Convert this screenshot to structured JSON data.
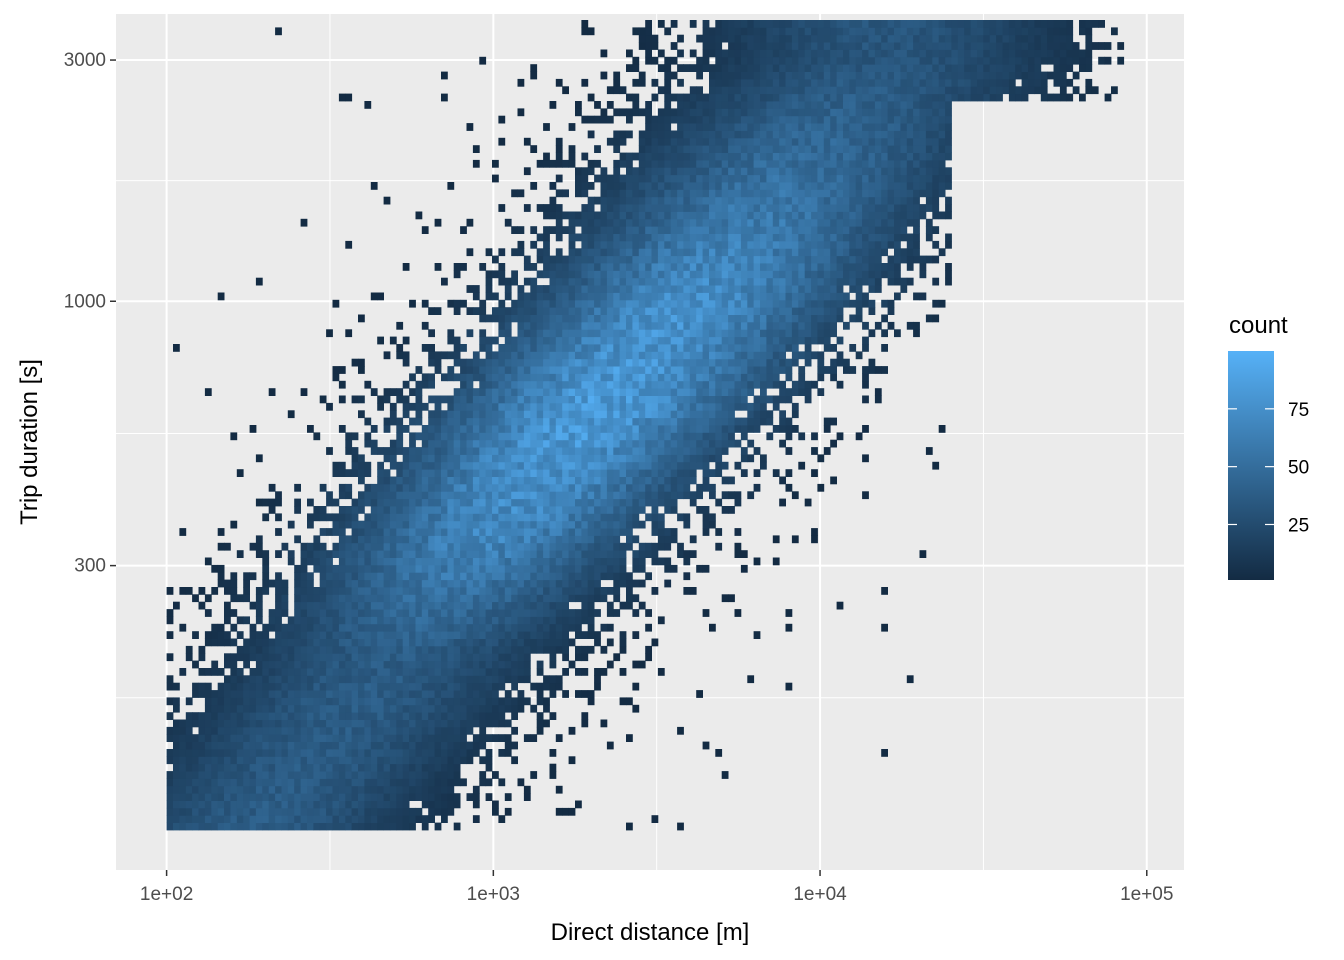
{
  "chart_data": {
    "type": "heatmap",
    "title": "",
    "xlabel": "Direct distance [m]",
    "ylabel": "Trip duration [s]",
    "x_scale": "log10",
    "y_scale": "log10",
    "xlim": [
      70,
      130000
    ],
    "ylim": [
      75,
      3700
    ],
    "x_ticks": [
      {
        "value": 100,
        "label": "1e+02"
      },
      {
        "value": 1000,
        "label": "1e+03"
      },
      {
        "value": 10000,
        "label": "1e+04"
      },
      {
        "value": 100000,
        "label": "1e+05"
      }
    ],
    "y_ticks": [
      {
        "value": 300,
        "label": "300"
      },
      {
        "value": 1000,
        "label": "1000"
      },
      {
        "value": 3000,
        "label": "3000"
      }
    ],
    "grid": true,
    "background_color": "#ebebeb",
    "grid_color": "#ffffff",
    "color_low": "#132b43",
    "color_high": "#56b1f7",
    "legend": {
      "title": "count",
      "placement": "right",
      "min": 1,
      "max": 100,
      "ticks": [
        {
          "value": 25,
          "label": "25"
        },
        {
          "value": 50,
          "label": "50"
        },
        {
          "value": 75,
          "label": "75"
        }
      ]
    },
    "density_summary": {
      "peak_region": {
        "distance_m": 2200,
        "duration_s": 700,
        "count": 95
      },
      "ridge": [
        {
          "distance_m": 500,
          "duration_s": 200,
          "count": 40
        },
        {
          "distance_m": 1000,
          "duration_s": 350,
          "count": 75
        },
        {
          "distance_m": 2000,
          "duration_s": 600,
          "count": 90
        },
        {
          "distance_m": 4000,
          "duration_s": 1000,
          "count": 80
        },
        {
          "distance_m": 8000,
          "duration_s": 1800,
          "count": 55
        },
        {
          "distance_m": 16000,
          "duration_s": 3000,
          "count": 35
        }
      ],
      "min_duration_s": 90,
      "max_duration_s": 3600,
      "min_distance_m": 100,
      "max_distance_m": 85000
    }
  }
}
